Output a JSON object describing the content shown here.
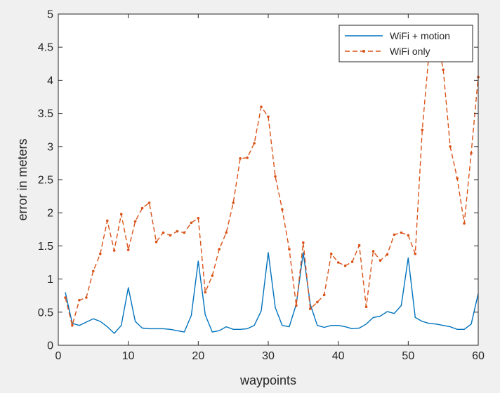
{
  "chart_data": {
    "type": "line",
    "title": "",
    "xlabel": "waypoints",
    "ylabel": "error in meters",
    "xlim": [
      0,
      60
    ],
    "ylim": [
      0,
      5
    ],
    "xticks": [
      0,
      10,
      20,
      30,
      40,
      50,
      60
    ],
    "xtick_labels": [
      "0",
      "10",
      "20",
      "30",
      "40",
      "50",
      "60"
    ],
    "yticks": [
      0,
      0.5,
      1,
      1.5,
      2,
      2.5,
      3,
      3.5,
      4,
      4.5,
      5
    ],
    "ytick_labels": [
      "0",
      "0.5",
      "1",
      "1.5",
      "2",
      "2.5",
      "3",
      "3.5",
      "4",
      "4.5",
      "5"
    ],
    "grid": false,
    "legend_position": "top-right",
    "series": [
      {
        "name": "WiFi + motion",
        "color": "#0072bd",
        "style": "solid",
        "x": [
          1,
          2,
          3,
          4,
          5,
          6,
          7,
          8,
          9,
          10,
          11,
          12,
          13,
          14,
          15,
          16,
          17,
          18,
          19,
          20,
          21,
          22,
          23,
          24,
          25,
          26,
          27,
          28,
          29,
          30,
          31,
          32,
          33,
          34,
          35,
          36,
          37,
          38,
          39,
          40,
          41,
          42,
          43,
          44,
          45,
          46,
          47,
          48,
          49,
          50,
          51,
          52,
          53,
          54,
          55,
          56,
          57,
          58,
          59,
          60
        ],
        "y": [
          0.8,
          0.33,
          0.3,
          0.35,
          0.4,
          0.36,
          0.28,
          0.18,
          0.3,
          0.87,
          0.36,
          0.26,
          0.25,
          0.25,
          0.25,
          0.24,
          0.22,
          0.2,
          0.45,
          1.27,
          0.46,
          0.2,
          0.22,
          0.28,
          0.24,
          0.24,
          0.25,
          0.3,
          0.52,
          1.4,
          0.57,
          0.3,
          0.28,
          0.62,
          1.4,
          0.62,
          0.3,
          0.27,
          0.3,
          0.3,
          0.28,
          0.25,
          0.26,
          0.32,
          0.42,
          0.44,
          0.51,
          0.48,
          0.6,
          1.32,
          0.42,
          0.36,
          0.33,
          0.32,
          0.3,
          0.28,
          0.24,
          0.24,
          0.32,
          0.78
        ]
      },
      {
        "name": "WiFi only",
        "color": "#d95319",
        "style": "dashed",
        "marker": "dot",
        "x": [
          1,
          2,
          3,
          4,
          5,
          6,
          7,
          8,
          9,
          10,
          11,
          12,
          13,
          14,
          15,
          16,
          17,
          18,
          19,
          20,
          21,
          22,
          23,
          24,
          25,
          26,
          27,
          28,
          29,
          30,
          31,
          32,
          33,
          34,
          35,
          36,
          37,
          38,
          39,
          40,
          41,
          42,
          43,
          44,
          45,
          46,
          47,
          48,
          49,
          50,
          51,
          52,
          53,
          54,
          55,
          56,
          57,
          58,
          59,
          60
        ],
        "y": [
          0.72,
          0.3,
          0.68,
          0.72,
          1.12,
          1.38,
          1.88,
          1.43,
          1.98,
          1.44,
          1.87,
          2.07,
          2.15,
          1.56,
          1.7,
          1.66,
          1.72,
          1.7,
          1.85,
          1.92,
          0.8,
          1.05,
          1.45,
          1.7,
          2.15,
          2.82,
          2.83,
          3.05,
          3.6,
          3.45,
          2.55,
          2.05,
          1.45,
          0.6,
          1.55,
          0.55,
          0.65,
          0.76,
          1.38,
          1.25,
          1.2,
          1.26,
          1.51,
          0.58,
          1.42,
          1.28,
          1.37,
          1.67,
          1.7,
          1.66,
          1.38,
          3.25,
          4.45,
          4.7,
          4.16,
          3.0,
          2.52,
          1.84,
          2.9,
          4.05
        ]
      }
    ]
  }
}
